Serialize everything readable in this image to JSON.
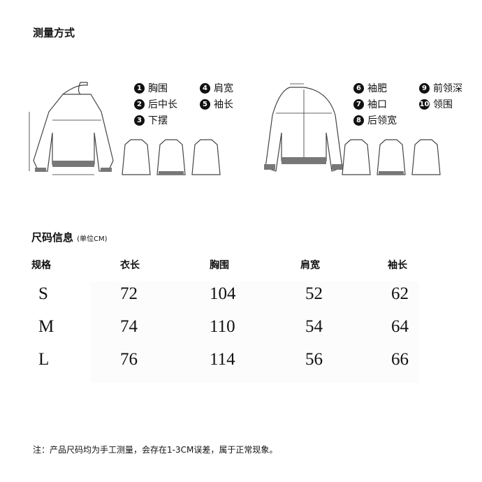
{
  "measure": {
    "title": "测量方式",
    "legend_front": [
      {
        "n": "1",
        "label": "胸围"
      },
      {
        "n": "2",
        "label": "后中长"
      },
      {
        "n": "3",
        "label": "下摆"
      },
      {
        "n": "4",
        "label": "肩宽"
      },
      {
        "n": "5",
        "label": "袖长"
      }
    ],
    "legend_back": [
      {
        "n": "6",
        "label": "袖肥"
      },
      {
        "n": "7",
        "label": "袖口"
      },
      {
        "n": "8",
        "label": "后领宽"
      },
      {
        "n": "9",
        "label": "前领深"
      },
      {
        "n": "10",
        "label": "领围"
      }
    ]
  },
  "size": {
    "title": "尺码信息",
    "unit": "(单位CM)",
    "headers": [
      "规格",
      "衣长",
      "胸围",
      "肩宽",
      "袖长"
    ],
    "rows": [
      [
        "S",
        "72",
        "104",
        "52",
        "62"
      ],
      [
        "M",
        "74",
        "110",
        "54",
        "64"
      ],
      [
        "L",
        "76",
        "114",
        "56",
        "66"
      ]
    ]
  },
  "note": "注：产品尺码均为手工测量，会存在1-3CM误差，属于正常现象。"
}
